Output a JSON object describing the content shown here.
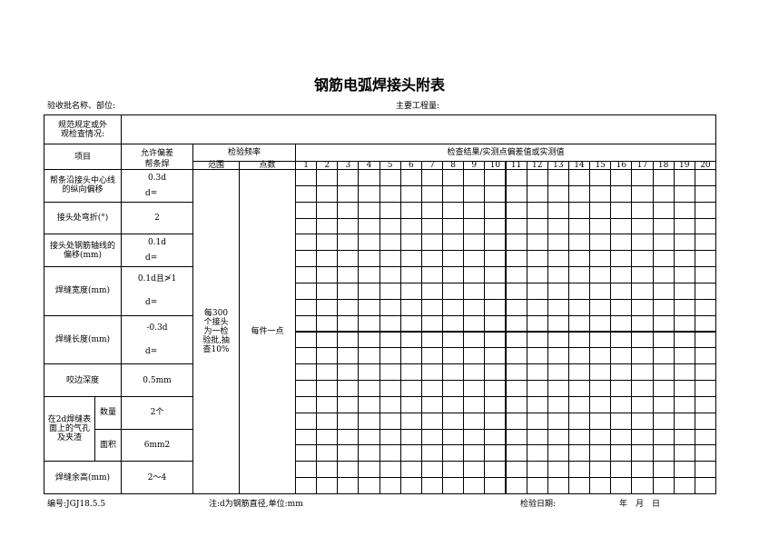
{
  "title": "钢筋电弧焊接头附表",
  "batch_label": "验收批名称、部位:",
  "quantity_label": "主要工程量:",
  "spec_label": "规范规定或外观检查情况:",
  "headers": {
    "item": "项目",
    "tolerance": "允许偏差",
    "tolerance_sub": "帮条焊",
    "frequency": "检验频率",
    "range": "范围",
    "points": "点数",
    "results": "检查结果/实测点偏差值或实测值"
  },
  "columns": [
    "1",
    "2",
    "3",
    "4",
    "5",
    "6",
    "7",
    "8",
    "9",
    "10",
    "11",
    "12",
    "13",
    "14",
    "15",
    "16",
    "17",
    "18",
    "19",
    "20"
  ],
  "items": [
    {
      "name": "帮条沿接头中心线的纵向偏移",
      "tol": "0.3d",
      "d": "d="
    },
    {
      "name": "接头处弯折(°)",
      "tol": "2"
    },
    {
      "name": "接头处钢筋轴线的偏移(mm)",
      "tol": "0.1d",
      "d": "d="
    },
    {
      "name": "焊缝宽度(mm)",
      "tol": "0.1d且≯1",
      "d": "d="
    },
    {
      "name": "焊缝长度(mm)",
      "tol": "-0.3d",
      "d": "d="
    },
    {
      "name": "咬边深度",
      "tol": "0.5mm"
    },
    {
      "name": "在2d焊缝表面上的气孔及夹渣",
      "subs": [
        {
          "name": "数量",
          "tol": "2个"
        },
        {
          "name": "面积",
          "tol": "6mm2"
        }
      ]
    },
    {
      "name": "焊缝余高(mm)",
      "tol": "2～4"
    }
  ],
  "range_text": "每300个接头为一检验批,抽查10%",
  "points_text": "每件一点",
  "footer": {
    "code": "编号:JGJ18.5.5",
    "note": "注:d为钢筋直径,单位:mm",
    "date_label": "检验日期:",
    "date_fields": "年　月　日"
  }
}
